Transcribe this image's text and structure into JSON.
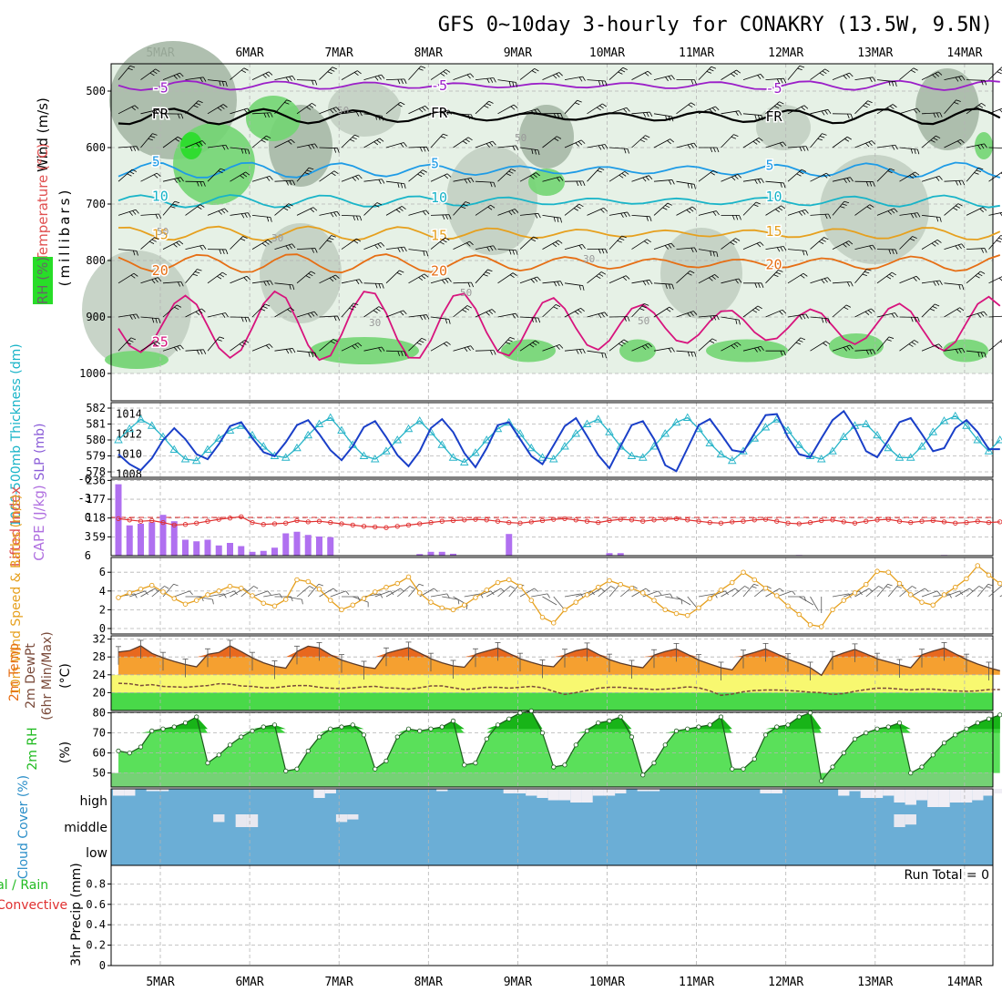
{
  "chart_data": {
    "type": "meteogram",
    "title": "GFS 0~10day 3-hourly for CONAKRY (13.5W, 9.5N)",
    "dates": [
      "5MAR",
      "6MAR",
      "7MAR",
      "8MAR",
      "9MAR",
      "10MAR",
      "11MAR",
      "12MAR",
      "13MAR",
      "14MAR"
    ],
    "colors": {
      "rh_light": "#e6f1e6",
      "rh_mid": "#c2cfc2",
      "rh_dark": "#a6b8a6",
      "rh_green": "#72d572",
      "rh_bright": "#28dd28",
      "grid": "#b4b4b4"
    },
    "panels": {
      "upper": {
        "ylabel": "(millibars)",
        "label_rh": "RH (%)",
        "label_temp": "Temperature (°C)",
        "label_wind": "Wind (m/s)",
        "pressure_ticks": [
          500,
          600,
          700,
          800,
          900,
          1000
        ],
        "yrange": [
          450,
          1040
        ],
        "isotherms": [
          {
            "label": "-5",
            "color": "#9b1fc8",
            "base": 490,
            "amp": 6
          },
          {
            "label": "FR",
            "color": "#000000",
            "base": 545,
            "amp": 10
          },
          {
            "label": "5",
            "color": "#1e9be6",
            "base": 640,
            "amp": 10
          },
          {
            "label": "10",
            "color": "#19b4c8",
            "base": 695,
            "amp": 8
          },
          {
            "label": "15",
            "color": "#e6a01e",
            "base": 752,
            "amp": 9
          },
          {
            "label": "20",
            "color": "#e66e14",
            "base": 805,
            "amp": 12
          },
          {
            "label": "25",
            "color": "#d7147d",
            "base": 915,
            "amp": 45
          }
        ],
        "rh_contour_labels": [
          "50",
          "50",
          "50",
          "30",
          "30",
          "50",
          "30",
          "50"
        ]
      },
      "thickness_slp": {
        "label_thickness": "1000-500mb Thickness (dm)",
        "label_slp": "SLP (mb)",
        "thickness_ticks": [
          578,
          579,
          580,
          581,
          582
        ],
        "slp_ticks": [
          1008,
          1010,
          1012,
          1014
        ],
        "thickness": [
          580.0,
          580.7,
          581.3,
          580.9,
          580.2,
          579.4,
          578.8,
          578.7,
          579.4,
          580.1,
          580.6,
          580.9,
          580.3,
          579.6,
          579.0,
          578.9,
          579.5,
          580.3,
          581.0,
          581.4,
          580.6,
          579.7,
          579.0,
          578.8,
          579.3,
          580.0,
          580.7,
          581.2,
          580.5,
          579.7,
          578.9,
          578.6,
          579.2,
          580.0,
          580.7,
          581.1,
          580.4,
          579.5,
          578.9,
          578.8,
          579.6,
          580.4,
          581.0,
          581.3,
          580.5,
          579.6,
          579.0,
          578.9,
          579.6,
          580.4,
          581.1,
          581.4,
          580.7,
          579.8,
          579.1,
          578.7,
          579.3,
          580.1,
          580.8,
          581.3,
          580.6,
          579.7,
          579.0,
          578.8,
          579.3,
          580.2,
          580.9,
          581.0,
          580.3,
          579.5,
          578.9,
          578.9,
          579.6,
          580.5,
          581.2,
          581.5,
          580.9,
          580.0,
          579.3,
          580.0
        ],
        "slp": [
          1010.0,
          1009.0,
          1008.4,
          1009.6,
          1011.4,
          1012.6,
          1011.5,
          1010.0,
          1009.5,
          1011.0,
          1012.8,
          1013.2,
          1011.6,
          1010.2,
          1009.8,
          1011.2,
          1012.9,
          1013.4,
          1012.0,
          1010.4,
          1009.4,
          1010.8,
          1012.7,
          1013.3,
          1011.7,
          1009.9,
          1008.8,
          1010.3,
          1012.6,
          1013.5,
          1012.2,
          1010.1,
          1008.7,
          1010.6,
          1012.9,
          1013.2,
          1011.5,
          1009.8,
          1009.0,
          1010.9,
          1012.8,
          1013.6,
          1011.8,
          1009.9,
          1008.6,
          1010.8,
          1012.9,
          1013.3,
          1011.5,
          1008.9,
          1008.3,
          1010.6,
          1012.9,
          1013.5,
          1012.0,
          1010.4,
          1010.2,
          1012.1,
          1013.9,
          1014.0,
          1011.7,
          1010.0,
          1009.7,
          1011.6,
          1013.4,
          1014.3,
          1012.6,
          1010.3,
          1009.7,
          1011.4,
          1013.2,
          1013.6,
          1012.0,
          1010.3,
          1010.6,
          1012.6,
          1013.4,
          1012.2,
          1010.5,
          1010.5
        ]
      },
      "cape_li": {
        "label_li": "Lifted Index",
        "label_cape": "CAPE (J/kg)",
        "li_ticks": [
          -6,
          -3,
          0,
          3,
          6
        ],
        "cape_ticks": [
          59,
          118,
          177,
          236
        ],
        "lifted_index": [
          0.2,
          0.4,
          0.6,
          0.5,
          0.8,
          1.2,
          1.1,
          0.9,
          0.6,
          0.3,
          0.1,
          -0.1,
          0.8,
          1.1,
          1.0,
          0.9,
          0.5,
          0.7,
          0.6,
          0.8,
          1.0,
          1.2,
          1.4,
          1.5,
          1.6,
          1.4,
          1.2,
          1.0,
          0.8,
          0.6,
          0.5,
          0.4,
          0.3,
          0.4,
          0.6,
          0.8,
          0.9,
          0.7,
          0.5,
          0.3,
          0.2,
          0.4,
          0.6,
          0.8,
          0.5,
          0.3,
          0.4,
          0.6,
          0.4,
          0.3,
          0.2,
          0.4,
          0.6,
          0.8,
          0.9,
          0.7,
          0.6,
          0.4,
          0.3,
          0.6,
          0.9,
          1.0,
          0.8,
          0.5,
          0.4,
          0.7,
          0.9,
          0.6,
          0.4,
          0.3,
          0.6,
          0.8,
          0.6,
          0.5,
          0.7,
          0.9,
          0.8,
          0.6,
          0.8,
          0.7
        ],
        "cape": [
          224,
          95,
          100,
          105,
          128,
          108,
          50,
          45,
          50,
          32,
          40,
          30,
          12,
          15,
          25,
          70,
          75,
          65,
          60,
          58,
          0,
          0,
          0,
          0,
          0,
          0,
          0,
          5,
          12,
          12,
          6,
          0,
          0,
          0,
          0,
          68,
          0,
          0,
          0,
          0,
          0,
          0,
          0,
          0,
          8,
          8,
          0,
          0,
          0,
          0,
          0,
          0,
          0,
          0,
          0,
          0,
          0,
          0,
          0,
          0,
          0,
          2,
          0,
          0,
          0,
          0,
          0,
          0,
          0,
          0,
          0,
          0,
          0,
          0,
          2,
          0,
          0,
          0,
          0,
          0
        ]
      },
      "wind10m": {
        "label": "10m Wind Speed & Barbs (m/s)",
        "ticks": [
          0,
          2,
          4,
          6
        ],
        "speed": [
          3.3,
          3.8,
          4.2,
          4.6,
          3.9,
          3.2,
          2.6,
          3.0,
          3.6,
          4.0,
          4.5,
          4.3,
          3.5,
          2.7,
          2.4,
          3.1,
          5.2,
          5.0,
          4.2,
          3.0,
          2.0,
          2.5,
          3.2,
          3.9,
          4.4,
          4.8,
          5.5,
          3.8,
          2.8,
          2.2,
          2.0,
          2.5,
          3.3,
          4.1,
          4.9,
          5.2,
          4.5,
          3.0,
          1.2,
          0.6,
          2.0,
          2.8,
          3.6,
          4.4,
          5.1,
          4.7,
          4.3,
          3.8,
          3.0,
          2.0,
          1.6,
          1.4,
          2.2,
          3.2,
          4.1,
          4.9,
          6.0,
          5.2,
          4.3,
          3.5,
          2.4,
          1.5,
          0.4,
          0.2,
          2.0,
          3.0,
          3.8,
          4.7,
          6.1,
          6.0,
          4.8,
          3.6,
          2.8,
          2.5,
          3.6,
          4.4,
          5.3,
          6.7,
          5.7,
          4.8
        ],
        "direction": [
          260,
          250,
          240,
          230,
          220,
          250,
          270,
          280,
          260,
          250,
          240,
          230,
          250,
          260,
          270,
          280,
          230,
          220,
          240,
          250,
          270,
          290,
          260,
          250,
          240,
          230,
          220,
          240,
          260,
          280,
          300,
          260,
          250,
          240,
          230,
          220,
          240,
          260,
          300,
          320,
          260,
          250,
          240,
          230,
          220,
          230,
          240,
          250,
          260,
          280,
          300,
          320,
          260,
          250,
          240,
          230,
          220,
          230,
          240,
          250,
          270,
          300,
          330,
          0,
          260,
          250,
          240,
          230,
          220,
          220,
          230,
          240,
          250,
          260,
          250,
          240,
          230,
          220,
          230,
          240
        ]
      },
      "temp2m": {
        "label_temp": "2m Temp",
        "label_dew": "2m DewPt",
        "label_minmax": "(6hr Min/Max)",
        "unit": "(°C)",
        "ticks": [
          20,
          24,
          28,
          32
        ],
        "temp": [
          29.1,
          29.4,
          30.5,
          28.8,
          27.8,
          27.0,
          26.3,
          25.8,
          28.6,
          29.0,
          30.5,
          29.2,
          27.8,
          26.7,
          25.9,
          25.5,
          29.2,
          30.4,
          30.0,
          28.5,
          27.3,
          26.5,
          25.8,
          25.4,
          28.8,
          29.5,
          30.1,
          28.9,
          27.6,
          26.7,
          26.0,
          25.7,
          28.6,
          29.3,
          30.0,
          28.8,
          27.6,
          26.8,
          26.1,
          25.8,
          28.5,
          29.4,
          29.9,
          28.6,
          27.4,
          26.6,
          26.0,
          25.6,
          28.4,
          29.2,
          29.8,
          28.6,
          27.3,
          26.4,
          25.6,
          25.1,
          28.3,
          29.0,
          29.8,
          28.7,
          27.5,
          26.6,
          25.6,
          23.9,
          28.0,
          28.9,
          29.7,
          28.7,
          27.6,
          26.9,
          26.2,
          25.6,
          28.5,
          29.3,
          30.0,
          28.7,
          27.4,
          26.4,
          25.6,
          24.9
        ],
        "dewpoint": [
          22.1,
          22.0,
          21.6,
          21.8,
          21.4,
          21.3,
          21.2,
          21.4,
          21.6,
          22.0,
          21.9,
          21.5,
          21.4,
          21.1,
          21.1,
          21.4,
          21.6,
          21.6,
          21.2,
          21.0,
          20.9,
          21.1,
          21.3,
          21.4,
          21.1,
          21.0,
          20.8,
          21.1,
          21.5,
          21.5,
          21.1,
          20.7,
          20.9,
          21.2,
          21.2,
          21.0,
          21.2,
          21.4,
          21.1,
          20.3,
          19.6,
          20.0,
          20.5,
          21.0,
          21.2,
          21.2,
          21.0,
          20.9,
          20.7,
          20.8,
          21.0,
          21.3,
          21.1,
          20.4,
          19.4,
          19.7,
          20.2,
          20.5,
          20.6,
          20.6,
          20.5,
          20.3,
          20.1,
          20.0,
          19.6,
          19.8,
          20.3,
          20.7,
          21.0,
          21.0,
          20.8,
          20.6,
          20.8,
          20.8,
          20.6,
          20.4,
          20.3,
          20.4,
          20.7,
          20.7
        ]
      },
      "rh2m": {
        "label": "2m RH",
        "unit": "(%)",
        "ticks": [
          50,
          60,
          70,
          80
        ],
        "rh": [
          61,
          60,
          63,
          71,
          72,
          73,
          75,
          78,
          55,
          59,
          64,
          68,
          71,
          73,
          74,
          51,
          52,
          61,
          68,
          72,
          73,
          74,
          69,
          52,
          56,
          68,
          72,
          71,
          72,
          73,
          76,
          54,
          55,
          67,
          74,
          77,
          80,
          81,
          70,
          53,
          54,
          64,
          71,
          75,
          76,
          78,
          68,
          49,
          55,
          64,
          71,
          72,
          73,
          74,
          78,
          52,
          52,
          57,
          69,
          73,
          74,
          78,
          80,
          46,
          53,
          60,
          67,
          70,
          72,
          73,
          75,
          50,
          53,
          59,
          65,
          69,
          72,
          75,
          77,
          79
        ]
      },
      "cloud": {
        "label": "Cloud Cover (%)",
        "levels": [
          "high",
          "middle",
          "low"
        ],
        "high_gaps": [
          0.3,
          0.3,
          0.0,
          0.1,
          0.1,
          0.0,
          0.0,
          0.0,
          0.0,
          0.0,
          0.0,
          0.0,
          0.0,
          0.0,
          0.0,
          0.0,
          0.0,
          0.0,
          0.4,
          0.2,
          0.0,
          0.0,
          0.0,
          0.0,
          0.0,
          0.0,
          0.0,
          0.0,
          0.0,
          0.1,
          0.0,
          0.0,
          0.0,
          0.0,
          0.0,
          0.2,
          0.2,
          0.3,
          0.4,
          0.5,
          0.5,
          0.6,
          0.6,
          0.3,
          0.3,
          0.2,
          0.0,
          0.1,
          0.1,
          0.0,
          0.0,
          0.0,
          0.0,
          0.0,
          0.0,
          0.0,
          0.0,
          0.0,
          0.2,
          0.2,
          0.0,
          0.0,
          0.0,
          0.0,
          0.0,
          0.3,
          0.1,
          0.4,
          0.4,
          0.3,
          0.6,
          0.7,
          0.5,
          0.8,
          0.8,
          0.6,
          0.6,
          0.5,
          0.3,
          0.2
        ],
        "mid_gaps": [
          0.0,
          0.0,
          0.0,
          0.0,
          0.0,
          0.0,
          0.0,
          0.0,
          0.0,
          0.3,
          0.0,
          0.5,
          0.5,
          0.0,
          0.0,
          0.0,
          0.0,
          0.0,
          0.0,
          0.0,
          0.3,
          0.2,
          0.0,
          0.0,
          0.0,
          0.0,
          0.0,
          0.0,
          0.0,
          0.0,
          0.0,
          0.0,
          0.0,
          0.0,
          0.0,
          0.0,
          0.0,
          0.0,
          0.0,
          0.0,
          0.0,
          0.0,
          0.0,
          0.0,
          0.0,
          0.0,
          0.0,
          0.0,
          0.0,
          0.0,
          0.0,
          0.0,
          0.0,
          0.0,
          0.0,
          0.0,
          0.0,
          0.0,
          0.0,
          0.0,
          0.0,
          0.0,
          0.0,
          0.0,
          0.0,
          0.0,
          0.0,
          0.0,
          0.0,
          0.0,
          0.5,
          0.4,
          0.0,
          0.0,
          0.0,
          0.0,
          0.0,
          0.0,
          0.0,
          0.0
        ]
      },
      "precip": {
        "label_total": "Total / Rain",
        "label_conv": "Convective",
        "label_precip": "3hr Precip (mm)",
        "run_total": "Run Total = 0",
        "ticks": [
          "0",
          "0.2",
          "0.4",
          "0.6",
          "0.8"
        ],
        "values": []
      }
    }
  }
}
